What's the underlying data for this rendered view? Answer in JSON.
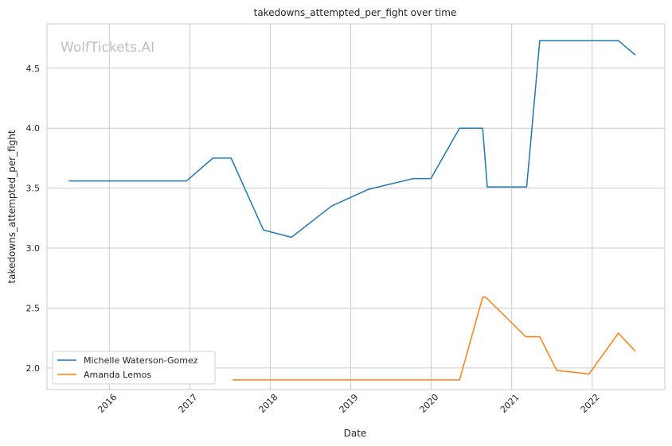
{
  "chart_data": {
    "type": "line",
    "title": "takedowns_attempted_per_fight over time",
    "xlabel": "Date",
    "ylabel": "takedowns_attempted_per_fight",
    "watermark": "WolfTickets.AI",
    "xlim": [
      "2015-03-24",
      "2022-11-27"
    ],
    "ylim": [
      1.82,
      4.87
    ],
    "x_ticks": [
      "2016-01-01",
      "2017-01-01",
      "2018-01-01",
      "2019-01-01",
      "2020-01-01",
      "2021-01-01",
      "2022-01-01"
    ],
    "x_tick_labels": [
      "2016",
      "2017",
      "2018",
      "2019",
      "2020",
      "2021",
      "2022"
    ],
    "y_ticks": [
      2.0,
      2.5,
      3.0,
      3.5,
      4.0,
      4.5
    ],
    "y_tick_labels": [
      "2.0",
      "2.5",
      "3.0",
      "3.5",
      "4.0",
      "4.5"
    ],
    "grid": true,
    "legend_position": "lower-left",
    "series": [
      {
        "name": "Michelle Waterson-Gomez",
        "color": "#1f77b4",
        "points": [
          {
            "x": "2015-07-01",
            "y": 3.56
          },
          {
            "x": "2016-12-17",
            "y": 3.56
          },
          {
            "x": "2017-04-15",
            "y": 3.75
          },
          {
            "x": "2017-07-07",
            "y": 3.75
          },
          {
            "x": "2017-12-01",
            "y": 3.15
          },
          {
            "x": "2018-04-07",
            "y": 3.09
          },
          {
            "x": "2018-10-06",
            "y": 3.35
          },
          {
            "x": "2019-03-23",
            "y": 3.49
          },
          {
            "x": "2019-10-12",
            "y": 3.58
          },
          {
            "x": "2019-12-31",
            "y": 3.58
          },
          {
            "x": "2020-05-09",
            "y": 4.0
          },
          {
            "x": "2020-08-22",
            "y": 4.0
          },
          {
            "x": "2020-09-12",
            "y": 3.51
          },
          {
            "x": "2021-03-10",
            "y": 3.51
          },
          {
            "x": "2021-05-08",
            "y": 4.73
          },
          {
            "x": "2022-04-30",
            "y": 4.73
          },
          {
            "x": "2022-07-16",
            "y": 4.61
          }
        ]
      },
      {
        "name": "Amanda Lemos",
        "color": "#ff7f0e",
        "points": [
          {
            "x": "2017-07-14",
            "y": 1.9
          },
          {
            "x": "2020-05-09",
            "y": 1.9
          },
          {
            "x": "2020-08-22",
            "y": 2.59
          },
          {
            "x": "2020-09-05",
            "y": 2.59
          },
          {
            "x": "2021-03-06",
            "y": 2.26
          },
          {
            "x": "2021-05-08",
            "y": 2.26
          },
          {
            "x": "2021-07-24",
            "y": 1.98
          },
          {
            "x": "2021-12-18",
            "y": 1.95
          },
          {
            "x": "2022-04-30",
            "y": 2.29
          },
          {
            "x": "2022-07-16",
            "y": 2.14
          }
        ]
      }
    ]
  }
}
